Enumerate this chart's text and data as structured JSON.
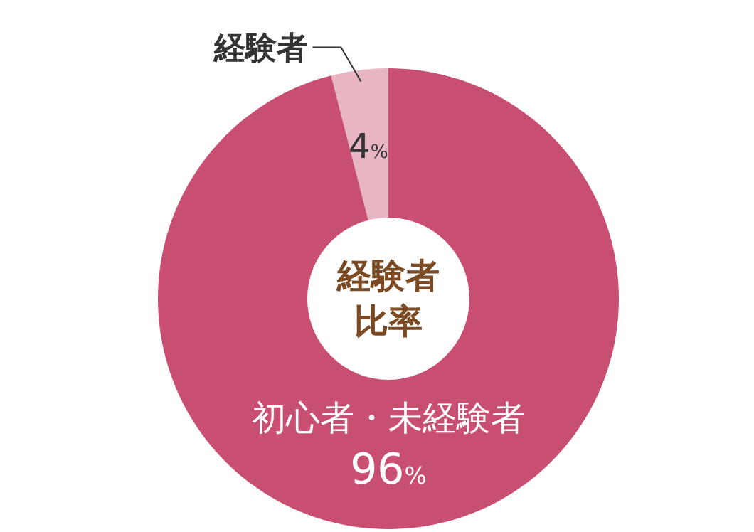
{
  "chart_data": {
    "type": "donut",
    "title": "経験者比率",
    "categories": [
      "経験者",
      "初心者・未経験者"
    ],
    "values": [
      4,
      96
    ],
    "colors": [
      "#e8b6c2",
      "#c94f72"
    ],
    "value_labels": [
      "4%",
      "96%"
    ]
  }
}
